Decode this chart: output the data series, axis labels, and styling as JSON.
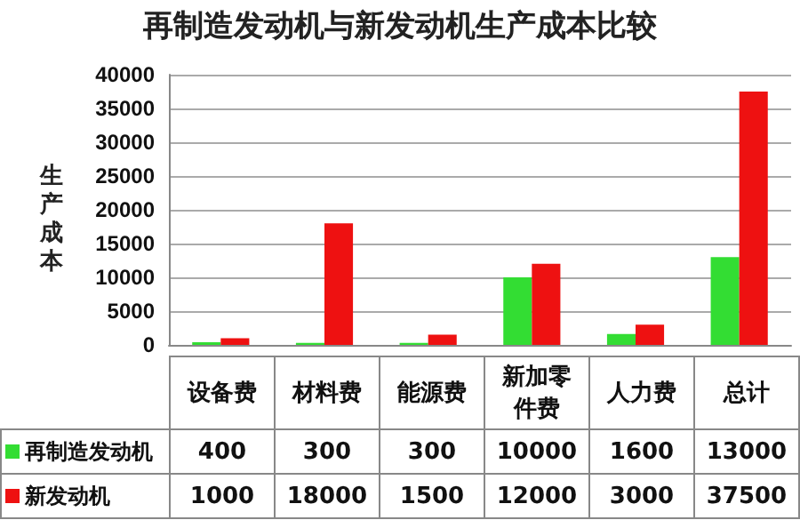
{
  "chart_data": {
    "type": "bar",
    "title": "再制造发动机与新发动机生产成本比较",
    "ylabel": "生产成本",
    "categories": [
      "设备费",
      "材料费",
      "能源费",
      "新加零件费",
      "人力费",
      "总计"
    ],
    "series": [
      {
        "name": "再制造发动机",
        "color": "#33dd33",
        "values": [
          400,
          300,
          300,
          10000,
          1600,
          13000
        ]
      },
      {
        "name": "新发动机",
        "color": "#ee1111",
        "values": [
          1000,
          18000,
          1500,
          12000,
          3000,
          37500
        ]
      }
    ],
    "ylim": [
      0,
      40000
    ],
    "yticks": [
      0,
      5000,
      10000,
      15000,
      20000,
      25000,
      30000,
      35000,
      40000
    ],
    "grid": "y",
    "legend": "bottom left",
    "data_labels": true
  }
}
